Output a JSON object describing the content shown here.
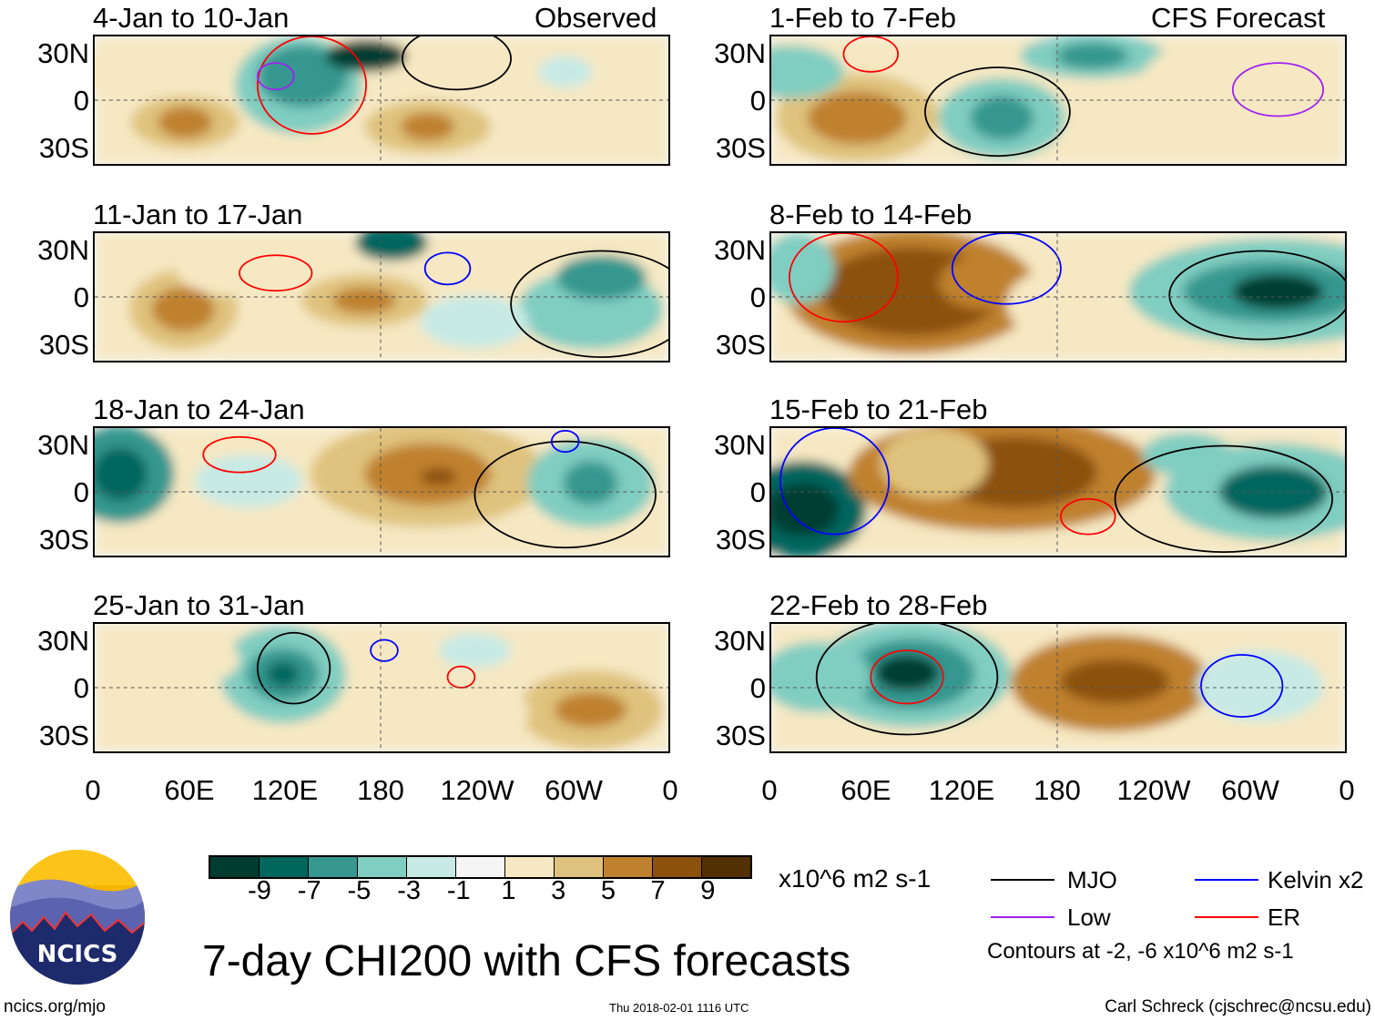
{
  "headers": {
    "observed": "Observed",
    "forecast": "CFS Forecast"
  },
  "panels": [
    {
      "title": "4-Jan to 10-Jan",
      "group": "observed"
    },
    {
      "title": "1-Feb to 7-Feb",
      "group": "forecast"
    },
    {
      "title": "11-Jan to 17-Jan",
      "group": "observed"
    },
    {
      "title": "8-Feb to 14-Feb",
      "group": "forecast"
    },
    {
      "title": "18-Jan to 24-Jan",
      "group": "observed"
    },
    {
      "title": "15-Feb to 21-Feb",
      "group": "forecast"
    },
    {
      "title": "25-Jan to 31-Jan",
      "group": "observed"
    },
    {
      "title": "22-Feb to 28-Feb",
      "group": "forecast"
    }
  ],
  "lat_labels": [
    "30N",
    "0",
    "30S"
  ],
  "lon_labels": [
    "0",
    "60E",
    "120E",
    "180",
    "120W",
    "60W",
    "0"
  ],
  "colorbar": {
    "colors": [
      "#003c30",
      "#01665e",
      "#35978f",
      "#80cdc1",
      "#c7eae5",
      "#f5f5f5",
      "#f6e8c3",
      "#dfc27d",
      "#bf812d",
      "#8c510a",
      "#543005"
    ],
    "labels": [
      "-9",
      "-7",
      "-5",
      "-3",
      "-1",
      "1",
      "3",
      "5",
      "7",
      "9"
    ],
    "units": "x10^6 m2 s-1"
  },
  "legend": {
    "items": [
      {
        "label": "MJO",
        "color": "#000000"
      },
      {
        "label": "Kelvin x2",
        "color": "#0000ff"
      },
      {
        "label": "Low",
        "color": "#a020f0"
      },
      {
        "label": "ER",
        "color": "#ff0000"
      }
    ],
    "note": "Contours at -2, -6 x10^6 m2 s-1"
  },
  "title": "7-day CHI200 with CFS forecasts",
  "logo_text": "NCICS",
  "footer": {
    "left": "ncics.org/mjo",
    "center": "Thu 2018-02-01 1116 UTC",
    "right": "Carl Schreck (cjschrec@ncsu.edu)"
  }
}
